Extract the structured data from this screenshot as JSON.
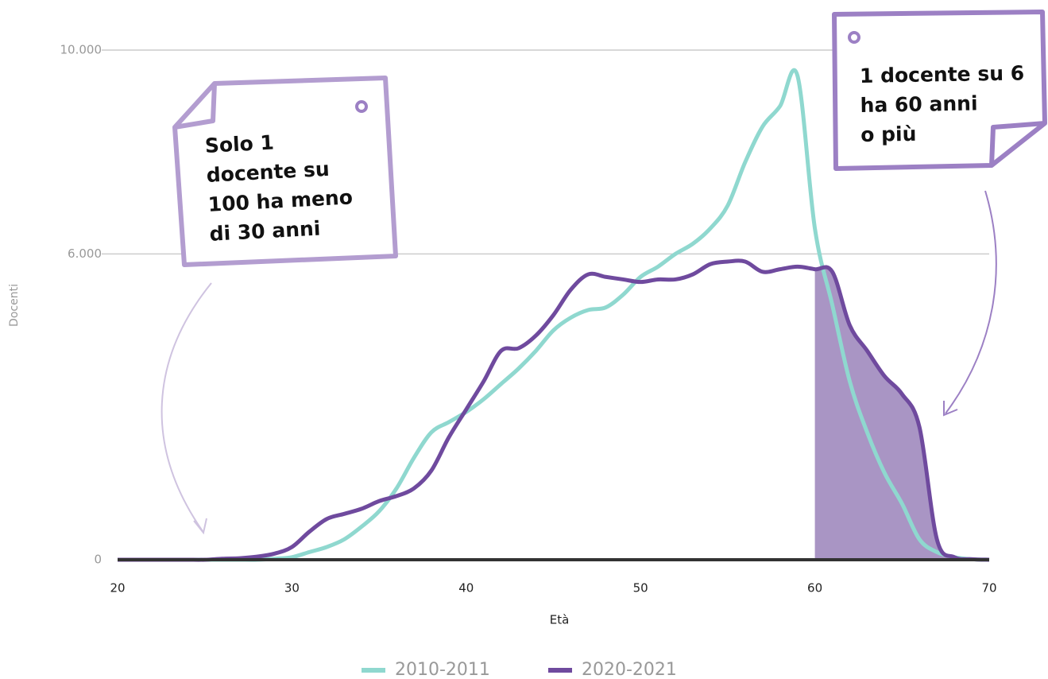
{
  "chart_data": {
    "type": "line",
    "x": [
      20,
      21,
      22,
      23,
      24,
      25,
      26,
      27,
      28,
      29,
      30,
      31,
      32,
      33,
      34,
      35,
      36,
      37,
      38,
      39,
      40,
      41,
      42,
      43,
      44,
      45,
      46,
      47,
      48,
      49,
      50,
      51,
      52,
      53,
      54,
      55,
      56,
      57,
      58,
      59,
      60,
      61,
      62,
      63,
      64,
      65,
      66,
      67,
      68,
      69,
      70
    ],
    "series": [
      {
        "name": "2010-2011",
        "color": "#8fd8cf",
        "values": [
          0,
          0,
          0,
          0,
          0,
          0,
          0,
          0,
          0,
          20,
          50,
          150,
          250,
          400,
          650,
          950,
          1400,
          2000,
          2500,
          2700,
          2900,
          3150,
          3450,
          3750,
          4100,
          4500,
          4750,
          4900,
          4950,
          5200,
          5550,
          5750,
          6000,
          6200,
          6500,
          6950,
          7800,
          8500,
          8900,
          9500,
          6500,
          5000,
          3500,
          2500,
          1700,
          1100,
          400,
          150,
          50,
          10,
          0
        ]
      },
      {
        "name": "2020-2021",
        "color": "#6f4a9e",
        "values": [
          0,
          0,
          0,
          0,
          0,
          0,
          20,
          30,
          60,
          120,
          250,
          550,
          800,
          900,
          1000,
          1150,
          1250,
          1400,
          1750,
          2400,
          2950,
          3500,
          4100,
          4150,
          4400,
          4800,
          5300,
          5600,
          5550,
          5500,
          5450,
          5500,
          5500,
          5600,
          5800,
          5850,
          5850,
          5650,
          5700,
          5750,
          5700,
          5650,
          4600,
          4100,
          3600,
          3250,
          2600,
          400,
          50,
          10,
          0
        ]
      }
    ],
    "shade_from": 60,
    "shade_color": "#a995c4",
    "xlabel": "Età",
    "ylabel": "Docenti",
    "xlim": [
      20,
      70
    ],
    "ylim": [
      0,
      10000
    ],
    "xticks": [
      20,
      30,
      40,
      50,
      60,
      70
    ],
    "yticks": [
      0,
      {
        "value": 6000,
        "label": "6.000"
      },
      {
        "value": 10000,
        "label": "10.000"
      }
    ],
    "grid": true,
    "legend": "bottom",
    "annotations": [
      {
        "lines": [
          "Solo 1",
          "docente su",
          "100 ha meno",
          "di 30 anni"
        ]
      },
      {
        "lines": [
          "1 docente su 6",
          "ha 60 anni",
          "o più"
        ]
      }
    ]
  }
}
